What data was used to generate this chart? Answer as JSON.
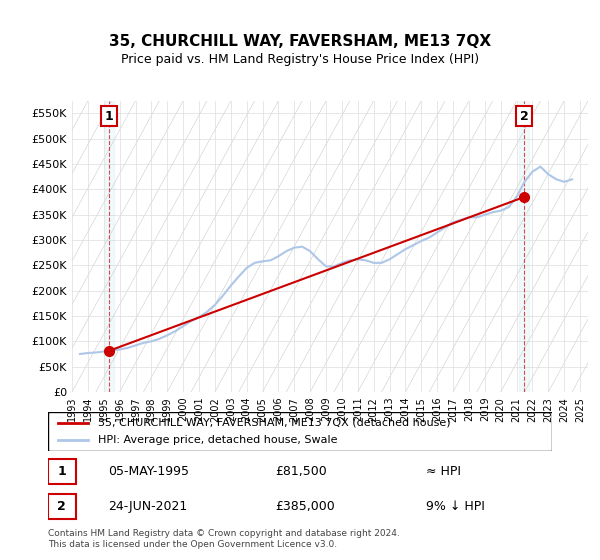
{
  "title": "35, CHURCHILL WAY, FAVERSHAM, ME13 7QX",
  "subtitle": "Price paid vs. HM Land Registry's House Price Index (HPI)",
  "legend_label1": "35, CHURCHILL WAY, FAVERSHAM, ME13 7QX (detached house)",
  "legend_label2": "HPI: Average price, detached house, Swale",
  "annotation1_label": "1",
  "annotation1_date": "05-MAY-1995",
  "annotation1_price": "£81,500",
  "annotation1_hpi": "≈ HPI",
  "annotation2_label": "2",
  "annotation2_date": "24-JUN-2021",
  "annotation2_price": "£385,000",
  "annotation2_hpi": "9% ↓ HPI",
  "footer": "Contains HM Land Registry data © Crown copyright and database right 2024.\nThis data is licensed under the Open Government Licence v3.0.",
  "hpi_color": "#aec6e8",
  "price_color": "#cc0000",
  "point_color": "#cc0000",
  "annotation_box_color": "#cc0000",
  "ylim_min": 0,
  "ylim_max": 575000,
  "yticks": [
    0,
    50000,
    100000,
    150000,
    200000,
    250000,
    300000,
    350000,
    400000,
    450000,
    500000,
    550000
  ],
  "ytick_labels": [
    "£0",
    "£50K",
    "£100K",
    "£150K",
    "£200K",
    "£250K",
    "£300K",
    "£350K",
    "£400K",
    "£450K",
    "£500K",
    "£550K"
  ],
  "hpi_data": {
    "years": [
      1993.5,
      1994.0,
      1994.5,
      1995.0,
      1995.5,
      1996.0,
      1996.5,
      1997.0,
      1997.5,
      1998.0,
      1998.5,
      1999.0,
      1999.5,
      2000.0,
      2000.5,
      2001.0,
      2001.5,
      2002.0,
      2002.5,
      2003.0,
      2003.5,
      2004.0,
      2004.5,
      2005.0,
      2005.5,
      2006.0,
      2006.5,
      2007.0,
      2007.5,
      2008.0,
      2008.5,
      2009.0,
      2009.5,
      2010.0,
      2010.5,
      2011.0,
      2011.5,
      2012.0,
      2012.5,
      2013.0,
      2013.5,
      2014.0,
      2014.5,
      2015.0,
      2015.5,
      2016.0,
      2016.5,
      2017.0,
      2017.5,
      2018.0,
      2018.5,
      2019.0,
      2019.5,
      2020.0,
      2020.5,
      2021.0,
      2021.5,
      2022.0,
      2022.5,
      2023.0,
      2023.5,
      2024.0,
      2024.5
    ],
    "values": [
      75000,
      77000,
      78000,
      80000,
      82000,
      84000,
      87000,
      92000,
      97000,
      100000,
      105000,
      112000,
      120000,
      130000,
      140000,
      148000,
      158000,
      172000,
      190000,
      210000,
      228000,
      245000,
      255000,
      258000,
      260000,
      268000,
      278000,
      285000,
      287000,
      278000,
      262000,
      248000,
      248000,
      255000,
      260000,
      262000,
      260000,
      255000,
      255000,
      262000,
      272000,
      282000,
      290000,
      298000,
      305000,
      315000,
      325000,
      335000,
      340000,
      345000,
      345000,
      350000,
      355000,
      358000,
      365000,
      385000,
      415000,
      435000,
      445000,
      430000,
      420000,
      415000,
      420000
    ]
  },
  "price_paid_data": {
    "dates": [
      1995.35,
      2021.48
    ],
    "prices": [
      81500,
      385000
    ]
  },
  "point1_x": 1995.35,
  "point1_y": 81500,
  "point2_x": 2021.48,
  "point2_y": 385000,
  "xmin": 1993,
  "xmax": 2025.5,
  "xticks": [
    1993,
    1994,
    1995,
    1996,
    1997,
    1998,
    1999,
    2000,
    2001,
    2002,
    2003,
    2004,
    2005,
    2006,
    2007,
    2008,
    2009,
    2010,
    2011,
    2012,
    2013,
    2014,
    2015,
    2016,
    2017,
    2018,
    2019,
    2020,
    2021,
    2022,
    2023,
    2024,
    2025
  ]
}
